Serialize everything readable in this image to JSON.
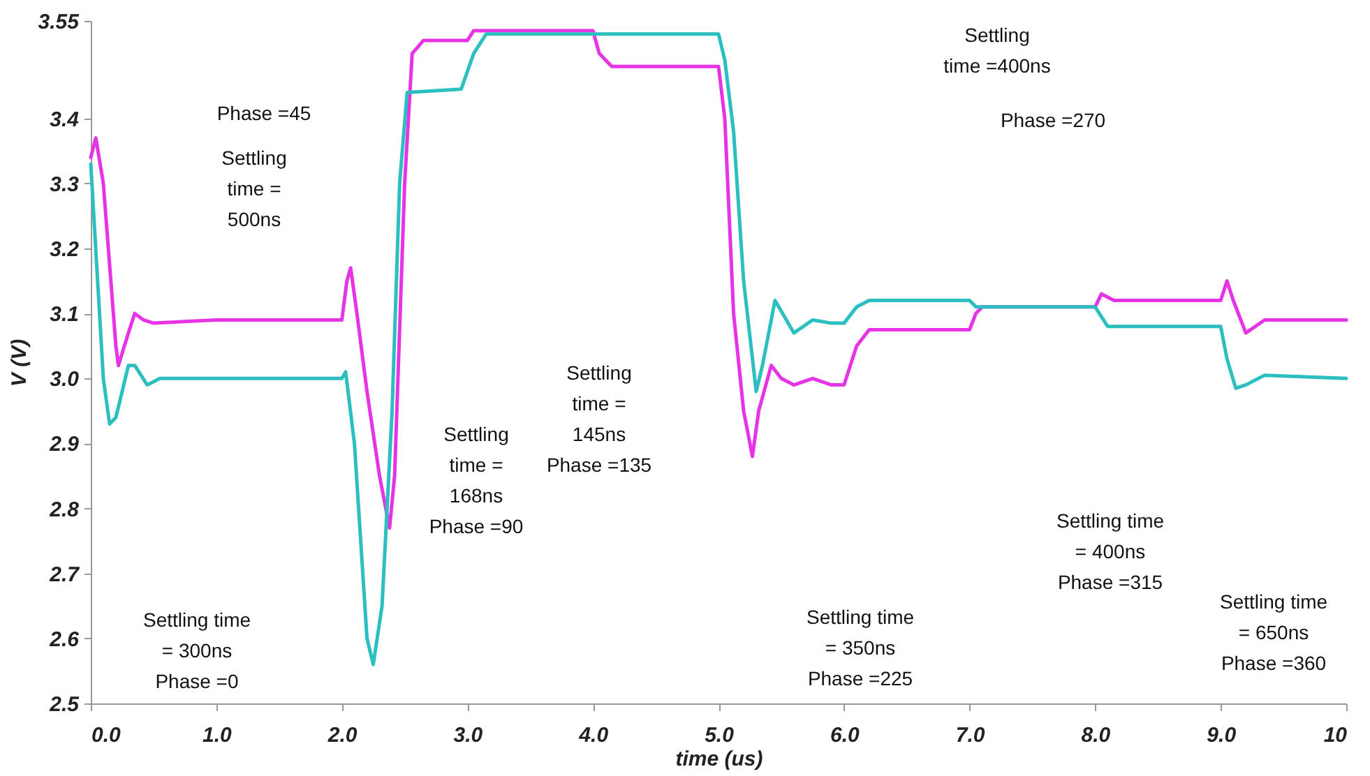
{
  "chart_data": {
    "type": "line",
    "xlabel": "time (us)",
    "ylabel": "V (V)",
    "xlim": [
      0,
      10
    ],
    "ylim": [
      2.5,
      3.55
    ],
    "xticks": [
      {
        "value": 0,
        "label": "0.0"
      },
      {
        "value": 1,
        "label": "1.0"
      },
      {
        "value": 2,
        "label": "2.0"
      },
      {
        "value": 3,
        "label": "3.0"
      },
      {
        "value": 4,
        "label": "4.0"
      },
      {
        "value": 5,
        "label": "5.0"
      },
      {
        "value": 6,
        "label": "6.0"
      },
      {
        "value": 7,
        "label": "7.0"
      },
      {
        "value": 8,
        "label": "8.0"
      },
      {
        "value": 9,
        "label": "9.0"
      },
      10
    ],
    "yticks": [
      2.5,
      2.6,
      2.7,
      2.8,
      2.9,
      {
        "value": 3,
        "label": "3.0"
      },
      3.1,
      3.2,
      3.3,
      3.4,
      3.55
    ],
    "grid": false,
    "marker": "none",
    "line_style": "solid",
    "series": [
      {
        "color": "#e633e6",
        "x": [
          0,
          0.04,
          0.1,
          0.2,
          0.22,
          0.3,
          0.35,
          0.42,
          0.5,
          1.0,
          2.0,
          2.04,
          2.07,
          2.12,
          2.2,
          2.3,
          2.38,
          2.42,
          2.5,
          2.56,
          2.65,
          3.0,
          3.05,
          4.0,
          4.05,
          4.15,
          5.0,
          5.05,
          5.12,
          5.2,
          5.27,
          5.32,
          5.42,
          5.5,
          5.6,
          5.75,
          5.9,
          6.0,
          6.1,
          6.2,
          7.0,
          7.05,
          7.1,
          8.0,
          8.05,
          8.15,
          9.0,
          9.05,
          9.1,
          9.2,
          9.35,
          10
        ],
        "values": [
          3.34,
          3.37,
          3.3,
          3.05,
          3.02,
          3.07,
          3.1,
          3.09,
          3.085,
          3.09,
          3.09,
          3.15,
          3.17,
          3.1,
          2.98,
          2.85,
          2.77,
          2.85,
          3.3,
          3.5,
          3.52,
          3.52,
          3.535,
          3.535,
          3.5,
          3.48,
          3.48,
          3.4,
          3.1,
          2.95,
          2.88,
          2.95,
          3.02,
          3.0,
          2.99,
          3.0,
          2.99,
          2.99,
          3.05,
          3.075,
          3.075,
          3.1,
          3.11,
          3.11,
          3.13,
          3.12,
          3.12,
          3.15,
          3.12,
          3.07,
          3.09,
          3.09
        ]
      },
      {
        "color": "#2bbfc0",
        "x": [
          0,
          0.1,
          0.15,
          0.2,
          0.3,
          0.35,
          0.45,
          0.55,
          2.0,
          2.03,
          2.1,
          2.2,
          2.25,
          2.32,
          2.4,
          2.46,
          2.52,
          2.95,
          3.05,
          3.15,
          5.0,
          5.05,
          5.12,
          5.2,
          5.3,
          5.35,
          5.45,
          5.6,
          5.75,
          5.9,
          6.0,
          6.1,
          6.2,
          7.0,
          7.05,
          8.0,
          8.1,
          9.0,
          9.05,
          9.12,
          9.2,
          9.35,
          10
        ],
        "values": [
          3.33,
          3.0,
          2.93,
          2.94,
          3.02,
          3.02,
          2.99,
          3.0,
          3.0,
          3.01,
          2.9,
          2.6,
          2.56,
          2.65,
          2.95,
          3.3,
          3.44,
          3.445,
          3.5,
          3.53,
          3.53,
          3.49,
          3.38,
          3.15,
          2.98,
          3.02,
          3.12,
          3.07,
          3.09,
          3.085,
          3.085,
          3.11,
          3.12,
          3.12,
          3.11,
          3.11,
          3.08,
          3.08,
          3.03,
          2.985,
          2.99,
          3.005,
          3.0
        ]
      }
    ],
    "annotations": [
      "Settling time\n= 300ns\nPhase =0",
      "Phase =45",
      "Settling\ntime =\n500ns",
      "Settling\ntime =\n168ns\nPhase =90",
      "Settling\ntime =\n145ns\nPhase =135",
      "Settling time\n= 350ns\nPhase =225",
      "Settling\ntime =400ns",
      "Phase =270",
      "Settling time\n= 400ns\nPhase =315",
      "Settling time\n= 650ns\nPhase =360"
    ]
  }
}
